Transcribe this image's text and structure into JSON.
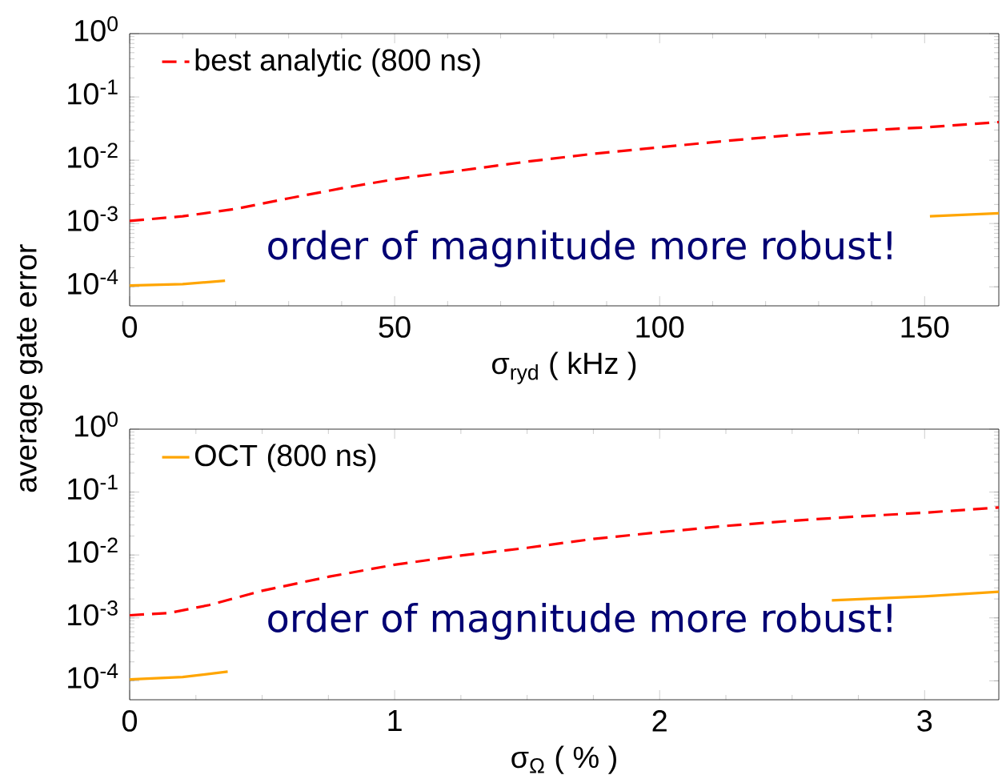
{
  "chart_data": [
    {
      "type": "line",
      "xlabel": "σ$_{ryd}$  ( kHz )",
      "ylabel": "average gate error",
      "log": "y",
      "legend": "top left",
      "xlim": [
        0,
        164
      ],
      "xticks": [
        0,
        50,
        100,
        150
      ],
      "ylim": [
        5e-05,
        1
      ],
      "yticks": [
        {
          "value": 0.0001,
          "label": "10$^{-4}$"
        },
        {
          "value": 0.001,
          "label": "10$^{-3}$"
        },
        {
          "value": 0.01,
          "label": "10$^{-2}$"
        },
        {
          "value": 0.1,
          "label": "10$^{-1}$"
        },
        {
          "value": 1,
          "label": "10$^{0}$"
        }
      ],
      "annotations": [
        "order of magnitude more robust!"
      ],
      "series": [
        {
          "name": "best analytic (800 ns)",
          "color": "#ff0000",
          "line_style": "dashed",
          "x": [
            0,
            10,
            20,
            30,
            40,
            50,
            62,
            75,
            87,
            100,
            112,
            125,
            137,
            150,
            164
          ],
          "values": [
            0.0011,
            0.0013,
            0.0017,
            0.0025,
            0.0036,
            0.005,
            0.0068,
            0.0095,
            0.0125,
            0.016,
            0.02,
            0.025,
            0.029,
            0.033,
            0.04
          ]
        },
        {
          "color": "#ffa500",
          "line_style": "solid",
          "x": [
            0,
            10,
            18,
            60,
            151,
            164
          ],
          "values": [
            0.000105,
            0.00011,
            0.000125,
            null,
            0.0013,
            0.00145
          ]
        }
      ]
    },
    {
      "type": "line",
      "xlabel": "σ$_{Ω}$  ( % )",
      "log": "y",
      "legend": "top left",
      "xlim": [
        0,
        3.28
      ],
      "xticks": [
        0,
        1,
        2,
        3
      ],
      "ylim": [
        5e-05,
        1
      ],
      "yticks": [
        {
          "value": 0.0001,
          "label": "10$^{-4}$"
        },
        {
          "value": 0.001,
          "label": "10$^{-3}$"
        },
        {
          "value": 0.01,
          "label": "10$^{-2}$"
        },
        {
          "value": 0.1,
          "label": "10$^{-1}$"
        },
        {
          "value": 1,
          "label": "10$^{0}$"
        }
      ],
      "annotations": [
        "order of magnitude more robust!"
      ],
      "series": [
        {
          "color": "#ff0000",
          "line_style": "dashed",
          "x": [
            0,
            0.15,
            0.3,
            0.5,
            0.75,
            1,
            1.25,
            1.5,
            1.75,
            2,
            2.25,
            2.5,
            2.75,
            3,
            3.28
          ],
          "values": [
            0.0011,
            0.0012,
            0.0016,
            0.0027,
            0.0045,
            0.007,
            0.0098,
            0.013,
            0.018,
            0.023,
            0.029,
            0.035,
            0.041,
            0.047,
            0.057
          ]
        },
        {
          "name": "OCT (800 ns)",
          "color": "#ffa500",
          "line_style": "solid",
          "x": [
            0,
            0.2,
            0.37,
            1.5,
            2.65,
            3,
            3.28
          ],
          "values": [
            0.000105,
            0.000115,
            0.00014,
            null,
            0.0019,
            0.0022,
            0.0026
          ]
        }
      ]
    }
  ]
}
